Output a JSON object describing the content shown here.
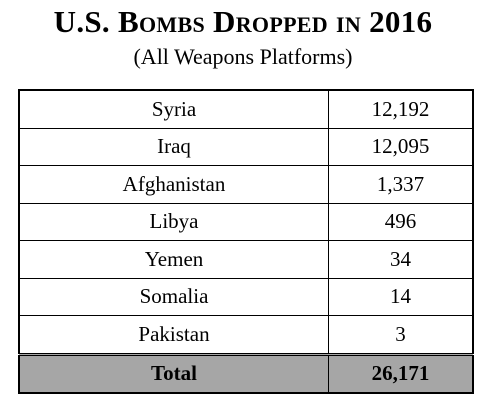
{
  "header": {
    "title": "U.S. Bombs Dropped in 2016",
    "subtitle": "(All Weapons Platforms)"
  },
  "table": {
    "rows": [
      [
        "Syria",
        "12,192"
      ],
      [
        "Iraq",
        "12,095"
      ],
      [
        "Afghanistan",
        "1,337"
      ],
      [
        "Libya",
        "496"
      ],
      [
        "Yemen",
        "34"
      ],
      [
        "Somalia",
        "14"
      ],
      [
        "Pakistan",
        "3"
      ]
    ],
    "total": [
      "Total",
      "26,171"
    ]
  }
}
